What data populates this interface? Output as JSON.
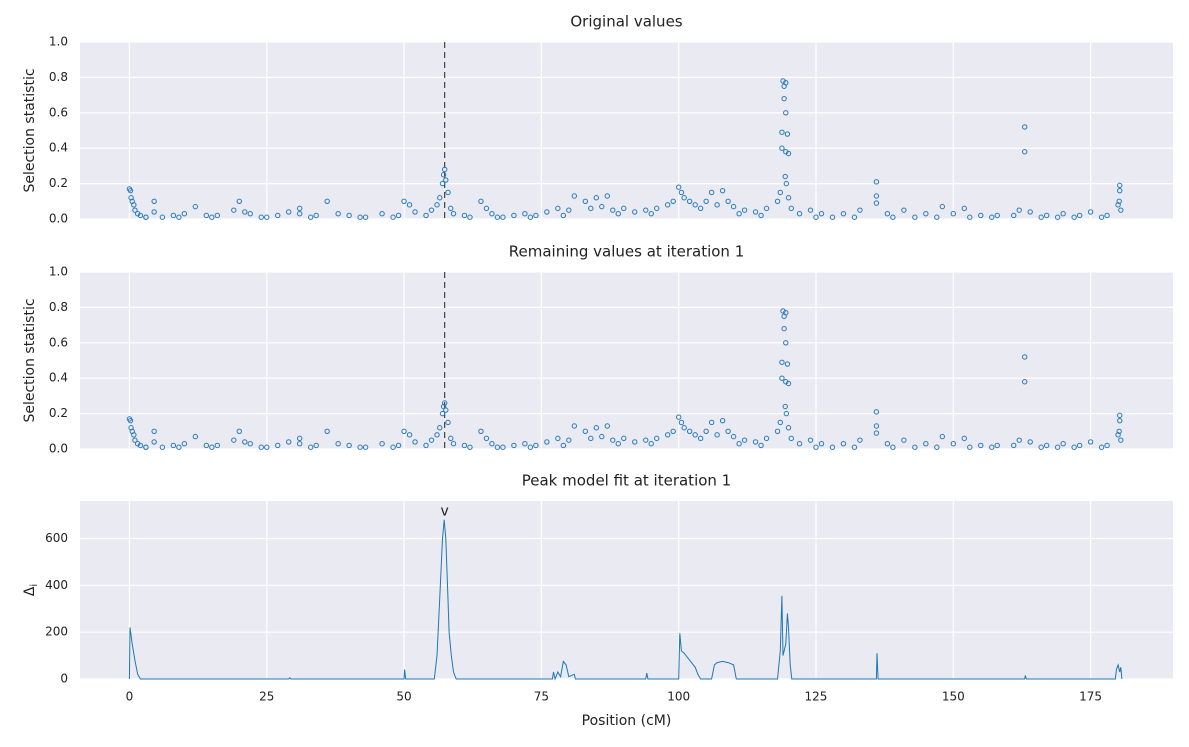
{
  "chart_data": [
    {
      "type": "scatter",
      "title": "Original values",
      "ylabel": "Selection statistic",
      "color": "#2a7ab8",
      "grid": true,
      "vline": 57.4,
      "xlim": [
        -9,
        190
      ],
      "xticks": [
        0,
        25,
        50,
        75,
        100,
        125,
        150,
        175
      ],
      "ylim": [
        0,
        1
      ],
      "yticks": [
        {
          "value": 0,
          "label": "0.0"
        },
        0.2,
        0.4,
        0.6,
        0.8,
        {
          "value": 1,
          "label": "1.0"
        }
      ],
      "x": [
        0,
        0.2,
        0.3,
        0.5,
        0.8,
        1,
        1.5,
        2,
        3,
        4.5,
        4.5,
        6,
        8,
        10,
        12,
        14,
        16,
        19,
        20,
        21,
        22,
        24,
        27,
        29,
        31,
        31,
        34,
        36,
        38,
        40,
        43,
        46,
        49,
        50,
        51,
        52,
        54,
        55,
        56,
        56.5,
        57,
        57.2,
        57.4,
        57.6,
        58,
        58.5,
        59,
        61,
        64,
        65,
        66,
        68,
        70,
        72,
        74,
        76,
        78,
        80,
        81,
        83,
        84,
        85,
        86,
        87,
        88,
        90,
        92,
        94,
        96,
        98,
        99,
        100,
        100.5,
        101,
        102,
        103,
        104,
        105,
        106,
        107,
        108,
        109,
        110,
        112,
        114,
        116,
        118,
        118.5,
        118.8,
        118.8,
        119,
        119.2,
        119.5,
        119.5,
        119.2,
        119.8,
        119.5,
        120,
        119.4,
        119.6,
        120,
        120.5,
        122,
        124,
        126,
        130,
        133,
        136,
        136,
        136,
        138,
        141,
        145,
        148,
        150,
        152,
        155,
        158,
        161,
        163,
        163,
        162,
        164,
        167,
        170,
        173,
        175,
        178,
        180,
        180.3,
        180.3,
        180.5,
        180.2,
        3,
        9,
        15,
        25,
        33,
        42,
        48,
        62,
        67,
        73,
        79,
        89,
        95,
        111,
        115,
        125,
        128,
        132,
        139,
        143,
        147,
        153,
        157,
        166,
        169,
        172,
        177
      ],
      "values": [
        0.17,
        0.16,
        0.12,
        0.1,
        0.08,
        0.05,
        0.03,
        0.02,
        0.01,
        0.1,
        0.04,
        0.01,
        0.02,
        0.03,
        0.07,
        0.02,
        0.02,
        0.05,
        0.1,
        0.04,
        0.03,
        0.01,
        0.02,
        0.04,
        0.06,
        0.03,
        0.02,
        0.1,
        0.03,
        0.02,
        0.01,
        0.03,
        0.02,
        0.1,
        0.08,
        0.04,
        0.02,
        0.05,
        0.08,
        0.12,
        0.2,
        0.25,
        0.28,
        0.22,
        0.15,
        0.06,
        0.03,
        0.02,
        0.1,
        0.06,
        0.03,
        0.01,
        0.02,
        0.03,
        0.02,
        0.04,
        0.06,
        0.05,
        0.13,
        0.1,
        0.06,
        0.12,
        0.07,
        0.13,
        0.05,
        0.06,
        0.04,
        0.05,
        0.06,
        0.08,
        0.1,
        0.18,
        0.15,
        0.12,
        0.1,
        0.08,
        0.06,
        0.1,
        0.15,
        0.08,
        0.16,
        0.1,
        0.07,
        0.05,
        0.04,
        0.06,
        0.1,
        0.15,
        0.4,
        0.49,
        0.78,
        0.75,
        0.77,
        0.6,
        0.68,
        0.48,
        0.38,
        0.37,
        0.24,
        0.2,
        0.12,
        0.06,
        0.03,
        0.05,
        0.03,
        0.03,
        0.05,
        0.21,
        0.13,
        0.09,
        0.03,
        0.05,
        0.03,
        0.07,
        0.03,
        0.06,
        0.02,
        0.02,
        0.02,
        0.52,
        0.38,
        0.05,
        0.04,
        0.02,
        0.03,
        0.02,
        0.04,
        0.02,
        0.08,
        0.19,
        0.16,
        0.05,
        0.1,
        0.01,
        0.01,
        0.01,
        0.01,
        0.01,
        0.01,
        0.01,
        0.01,
        0.01,
        0.01,
        0.02,
        0.03,
        0.03,
        0.03,
        0.02,
        0.01,
        0.01,
        0.01,
        0.01,
        0.01,
        0.01,
        0.01,
        0.01,
        0.01,
        0.01,
        0.01,
        0.01
      ]
    },
    {
      "type": "scatter",
      "title": "Remaining values at iteration 1",
      "ylabel": "Selection statistic",
      "color": "#2a7ab8",
      "grid": true,
      "vline": 57.4,
      "xlim": [
        -9,
        190
      ],
      "xticks": [
        0,
        25,
        50,
        75,
        100,
        125,
        150,
        175
      ],
      "ylim": [
        0,
        1
      ],
      "yticks": [
        {
          "value": 0,
          "label": "0.0"
        },
        0.2,
        0.4,
        0.6,
        0.8,
        {
          "value": 1,
          "label": "1.0"
        }
      ],
      "x": [
        0,
        0.2,
        0.3,
        0.5,
        0.8,
        1,
        1.5,
        2,
        3,
        4.5,
        4.5,
        6,
        8,
        10,
        12,
        14,
        16,
        19,
        20,
        21,
        22,
        24,
        27,
        29,
        31,
        31,
        34,
        36,
        38,
        40,
        43,
        46,
        49,
        50,
        51,
        52,
        54,
        55,
        56,
        56.5,
        57,
        57.2,
        57.4,
        57.6,
        58,
        58.5,
        59,
        61,
        64,
        65,
        66,
        68,
        70,
        72,
        74,
        76,
        78,
        80,
        81,
        83,
        84,
        85,
        86,
        87,
        88,
        90,
        92,
        94,
        96,
        98,
        99,
        100,
        100.5,
        101,
        102,
        103,
        104,
        105,
        106,
        107,
        108,
        109,
        110,
        112,
        114,
        116,
        118,
        118.5,
        118.8,
        118.8,
        119,
        119.2,
        119.5,
        119.5,
        119.2,
        119.8,
        119.5,
        120,
        119.4,
        119.6,
        120,
        120.5,
        122,
        124,
        126,
        130,
        133,
        136,
        136,
        136,
        138,
        141,
        145,
        148,
        150,
        152,
        155,
        158,
        161,
        163,
        163,
        162,
        164,
        167,
        170,
        173,
        175,
        178,
        180,
        180.3,
        180.3,
        180.5,
        180.2,
        3,
        9,
        15,
        25,
        33,
        42,
        48,
        62,
        67,
        73,
        79,
        89,
        95,
        111,
        115,
        125,
        128,
        132,
        139,
        143,
        147,
        153,
        157,
        166,
        169,
        172,
        177
      ],
      "values": [
        0.17,
        0.16,
        0.12,
        0.1,
        0.08,
        0.05,
        0.03,
        0.02,
        0.01,
        0.1,
        0.04,
        0.01,
        0.02,
        0.03,
        0.07,
        0.02,
        0.02,
        0.05,
        0.1,
        0.04,
        0.03,
        0.01,
        0.02,
        0.04,
        0.06,
        0.03,
        0.02,
        0.1,
        0.03,
        0.02,
        0.01,
        0.03,
        0.02,
        0.1,
        0.08,
        0.04,
        0.02,
        0.05,
        0.08,
        0.12,
        0.2,
        0.24,
        0.26,
        0.22,
        0.15,
        0.06,
        0.03,
        0.02,
        0.1,
        0.06,
        0.03,
        0.01,
        0.02,
        0.03,
        0.02,
        0.04,
        0.06,
        0.05,
        0.13,
        0.1,
        0.06,
        0.12,
        0.07,
        0.13,
        0.05,
        0.06,
        0.04,
        0.05,
        0.06,
        0.08,
        0.1,
        0.18,
        0.15,
        0.12,
        0.1,
        0.08,
        0.06,
        0.1,
        0.15,
        0.08,
        0.16,
        0.1,
        0.07,
        0.05,
        0.04,
        0.06,
        0.1,
        0.15,
        0.4,
        0.49,
        0.78,
        0.75,
        0.77,
        0.6,
        0.68,
        0.48,
        0.38,
        0.37,
        0.24,
        0.2,
        0.12,
        0.06,
        0.03,
        0.05,
        0.03,
        0.03,
        0.05,
        0.21,
        0.13,
        0.09,
        0.03,
        0.05,
        0.03,
        0.07,
        0.03,
        0.06,
        0.02,
        0.02,
        0.02,
        0.52,
        0.38,
        0.05,
        0.04,
        0.02,
        0.03,
        0.02,
        0.04,
        0.02,
        0.08,
        0.19,
        0.16,
        0.05,
        0.1,
        0.01,
        0.01,
        0.01,
        0.01,
        0.01,
        0.01,
        0.01,
        0.01,
        0.01,
        0.01,
        0.02,
        0.03,
        0.03,
        0.03,
        0.02,
        0.01,
        0.01,
        0.01,
        0.01,
        0.01,
        0.01,
        0.01,
        0.01,
        0.01,
        0.01,
        0.01,
        0.01
      ]
    },
    {
      "type": "line",
      "title": "Peak model fit at iteration 1",
      "ylabel": "Δ",
      "ylabel_sub": "i",
      "xlabel": "Position (cM)",
      "color": "#1f77b4",
      "grid": true,
      "annotations": [
        {
          "text": "v",
          "x": 57.4,
          "y": 680
        }
      ],
      "xlim": [
        -9,
        190
      ],
      "xticks": [
        0,
        25,
        50,
        75,
        100,
        125,
        150,
        175
      ],
      "ylim": [
        0,
        760
      ],
      "yticks": [
        0,
        200,
        400,
        600
      ],
      "x": [
        0,
        0.1,
        0.5,
        1,
        1.5,
        2,
        29,
        29.2,
        29.4,
        50,
        50.1,
        50.3,
        55.5,
        56,
        56.5,
        57,
        57.3,
        57.6,
        58,
        58.2,
        58.6,
        59,
        59.5,
        77,
        77.2,
        77.5,
        78,
        78.5,
        79,
        79.5,
        80,
        81,
        81.2,
        94,
        94.2,
        94.4,
        100,
        100.2,
        100.5,
        101,
        102,
        103,
        103.5,
        104,
        106,
        106.5,
        107,
        108,
        109,
        110,
        110.5,
        118,
        118.5,
        118.8,
        119,
        119.5,
        119.8,
        120,
        120.3,
        120.6,
        136,
        136.1,
        136.3,
        163,
        163.1,
        163.3,
        179.5,
        179.7,
        180,
        180.3,
        180.5,
        180.7
      ],
      "values": [
        0,
        220,
        150,
        80,
        20,
        0,
        0,
        5,
        0,
        0,
        40,
        0,
        0,
        100,
        350,
        600,
        680,
        600,
        340,
        200,
        100,
        30,
        0,
        0,
        30,
        0,
        30,
        10,
        75,
        60,
        10,
        20,
        0,
        0,
        25,
        0,
        0,
        195,
        120,
        110,
        80,
        50,
        20,
        0,
        0,
        60,
        70,
        75,
        70,
        60,
        0,
        0,
        120,
        355,
        100,
        150,
        280,
        220,
        60,
        0,
        0,
        110,
        0,
        0,
        15,
        0,
        0,
        40,
        60,
        30,
        50,
        0
      ]
    }
  ]
}
